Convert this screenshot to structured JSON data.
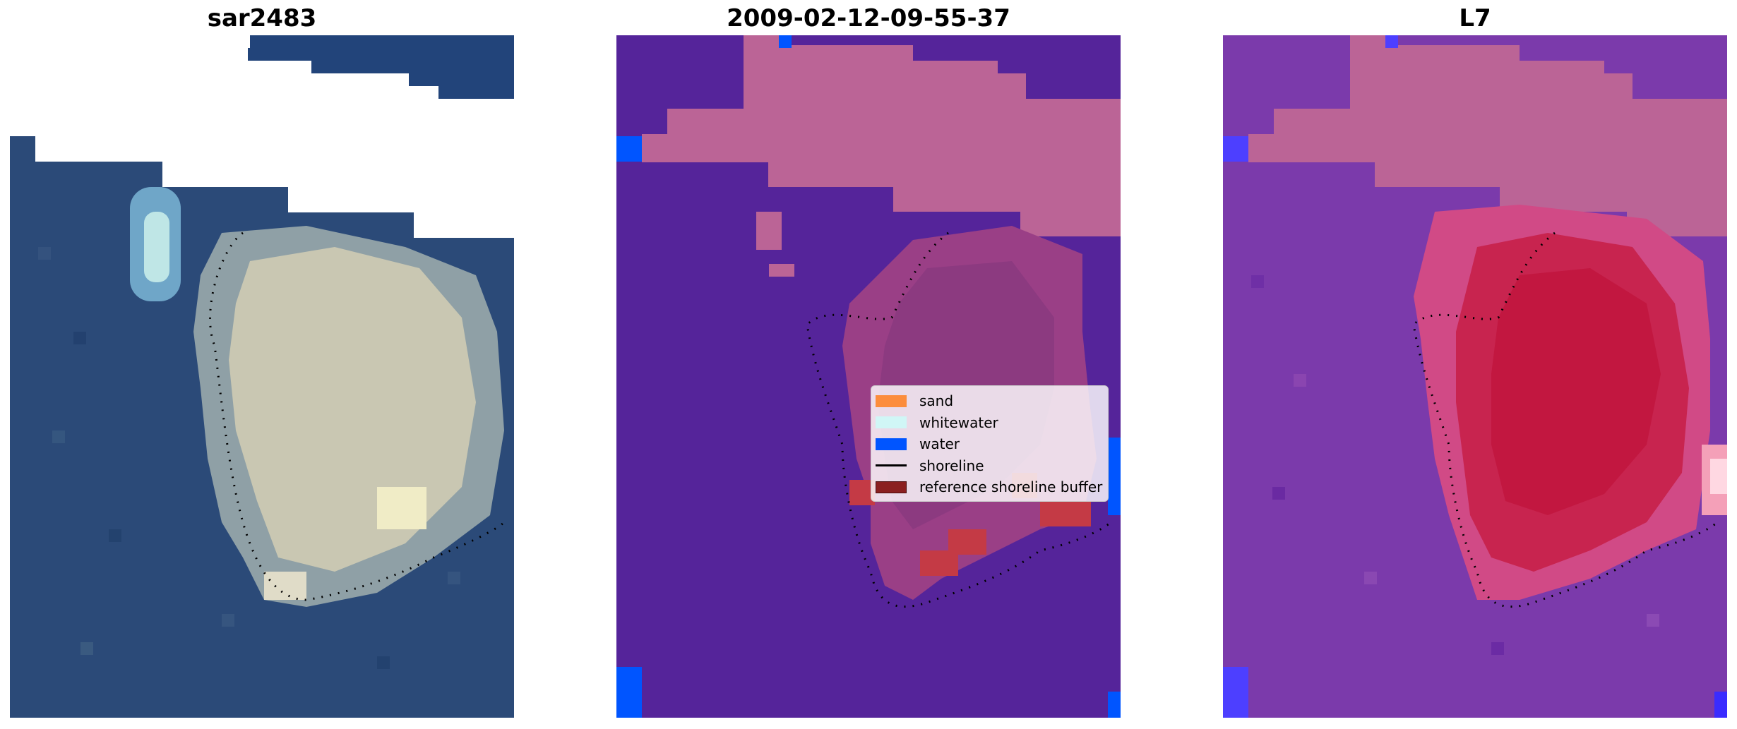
{
  "panels": [
    {
      "title": "sar2483"
    },
    {
      "title": "2009-02-12-09-55-37"
    },
    {
      "title": "L7"
    }
  ],
  "legend": {
    "items": [
      {
        "label": "sand",
        "color": "#fc8d3c"
      },
      {
        "label": "whitewater",
        "color": "#d0f6f6"
      },
      {
        "label": "water",
        "color": "#0055ff"
      },
      {
        "label": "shoreline",
        "color": "#000000"
      },
      {
        "label": "reference shoreline buffer",
        "color": "#8b2020"
      }
    ]
  },
  "colors": {
    "rgb_water": "#2a4a78",
    "rgb_sand": "#c8c6b0",
    "classified_background": "#55249a",
    "classified_land": "#bb6496",
    "classified_buffer": "#c43a45",
    "mndwi_background": "#7a3aaa",
    "mndwi_land": "#bb6496",
    "mndwi_buffer": "#c21740"
  }
}
